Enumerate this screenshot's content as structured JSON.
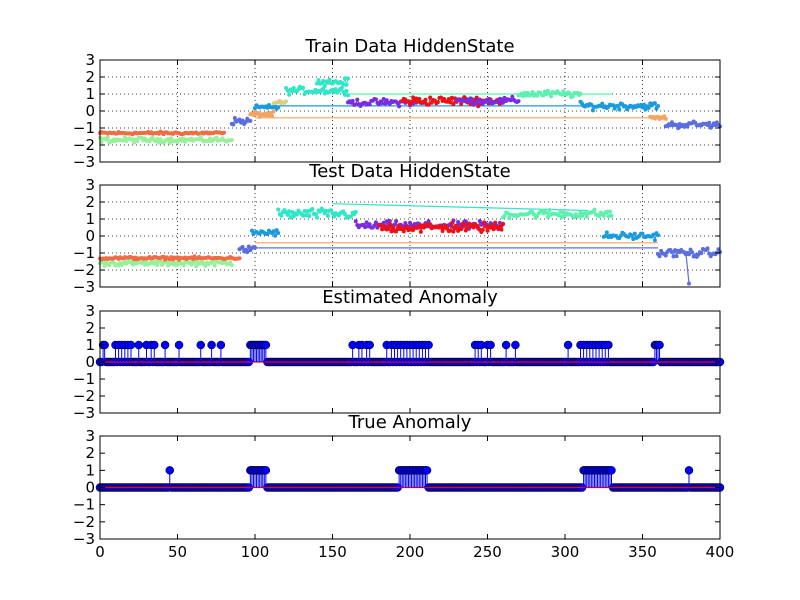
{
  "figure": {
    "background": "#ffffff"
  },
  "chart_data": [
    {
      "type": "scatter",
      "title": "Train Data HiddenState",
      "xlabel": "",
      "ylabel": "",
      "xlim": [
        0,
        400
      ],
      "ylim": [
        -3,
        3
      ],
      "yticks": [
        -3,
        -2,
        -1,
        0,
        1,
        2,
        3
      ],
      "grid": true,
      "show_xticklabels": false,
      "style": "colored hidden-state segments with connecting lines",
      "segments": [
        {
          "x": [
            0,
            80
          ],
          "y_mean": -1.3,
          "noise": 0.08,
          "color": "#f26b43"
        },
        {
          "x": [
            0,
            85
          ],
          "y_mean": -1.7,
          "noise": 0.15,
          "color": "#98f09a"
        },
        {
          "x": [
            85,
            97
          ],
          "y_mean": -0.6,
          "noise": 0.2,
          "color": "#5b6ee0"
        },
        {
          "x": [
            97,
            112
          ],
          "y_mean": -0.2,
          "noise": 0.15,
          "color": "#f4a460"
        },
        {
          "x": [
            100,
            115
          ],
          "y_mean": 0.2,
          "noise": 0.15,
          "color": "#1a9be0"
        },
        {
          "x": [
            112,
            120
          ],
          "y_mean": 0.5,
          "noise": 0.1,
          "color": "#d8d080"
        },
        {
          "x": [
            120,
            160
          ],
          "y_mean": 1.2,
          "noise": 0.2,
          "color": "#2ee6c8"
        },
        {
          "x": [
            140,
            160
          ],
          "y_mean": 1.7,
          "noise": 0.2,
          "color": "#2ee6c8"
        },
        {
          "x": [
            160,
            210
          ],
          "y_mean": 0.5,
          "noise": 0.2,
          "color": "#7b2be0"
        },
        {
          "x": [
            195,
            260
          ],
          "y_mean": 0.6,
          "noise": 0.25,
          "color": "#ee1111"
        },
        {
          "x": [
            230,
            270
          ],
          "y_mean": 0.6,
          "noise": 0.2,
          "color": "#7b2be0"
        },
        {
          "x": [
            270,
            310
          ],
          "y_mean": 1.0,
          "noise": 0.2,
          "color": "#5ef0b0"
        },
        {
          "x": [
            310,
            360
          ],
          "y_mean": 0.3,
          "noise": 0.2,
          "color": "#1a9be0"
        },
        {
          "x": [
            355,
            365
          ],
          "y_mean": -0.4,
          "noise": 0.1,
          "color": "#f4a460"
        },
        {
          "x": [
            365,
            400
          ],
          "y_mean": -0.8,
          "noise": 0.2,
          "color": "#5b6ee0"
        }
      ],
      "lines": [
        {
          "x": [
            100,
            360
          ],
          "y": [
            -0.4,
            -0.4
          ],
          "color": "#f4a460"
        },
        {
          "x": [
            110,
            330
          ],
          "y": [
            0.3,
            0.3
          ],
          "color": "#1a9be0"
        },
        {
          "x": [
            160,
            330
          ],
          "y": [
            1.0,
            1.0
          ],
          "color": "#5ef0b0"
        }
      ]
    },
    {
      "type": "scatter",
      "title": "Test Data HiddenState",
      "xlabel": "",
      "ylabel": "",
      "xlim": [
        0,
        400
      ],
      "ylim": [
        -3,
        3
      ],
      "yticks": [
        -3,
        -2,
        -1,
        0,
        1,
        2,
        3
      ],
      "grid": true,
      "show_xticklabels": false,
      "style": "colored hidden-state segments with connecting lines",
      "segments": [
        {
          "x": [
            0,
            85
          ],
          "y_mean": -1.6,
          "noise": 0.15,
          "color": "#98f09a"
        },
        {
          "x": [
            0,
            90
          ],
          "y_mean": -1.3,
          "noise": 0.08,
          "color": "#f26b43"
        },
        {
          "x": [
            90,
            100
          ],
          "y_mean": -0.8,
          "noise": 0.2,
          "color": "#5b6ee0"
        },
        {
          "x": [
            98,
            115
          ],
          "y_mean": 0.2,
          "noise": 0.2,
          "color": "#1a9be0"
        },
        {
          "x": [
            115,
            165
          ],
          "y_mean": 1.3,
          "noise": 0.3,
          "color": "#2ee6c8"
        },
        {
          "x": [
            165,
            260
          ],
          "y_mean": 0.6,
          "noise": 0.25,
          "color": "#7b2be0"
        },
        {
          "x": [
            180,
            260
          ],
          "y_mean": 0.5,
          "noise": 0.3,
          "color": "#ee1111"
        },
        {
          "x": [
            260,
            330
          ],
          "y_mean": 1.3,
          "noise": 0.25,
          "color": "#5ef0b0"
        },
        {
          "x": [
            325,
            360
          ],
          "y_mean": 0.0,
          "noise": 0.2,
          "color": "#1a9be0"
        },
        {
          "x": [
            360,
            400
          ],
          "y_mean": -1.0,
          "noise": 0.25,
          "color": "#5b6ee0"
        }
      ],
      "lines": [
        {
          "x": [
            100,
            360
          ],
          "y": [
            -0.7,
            -0.7
          ],
          "color": "#5b6ee0"
        },
        {
          "x": [
            100,
            360
          ],
          "y": [
            -0.4,
            -0.4
          ],
          "color": "#f4a460"
        },
        {
          "x": [
            150,
            315
          ],
          "y": [
            1.9,
            1.5
          ],
          "color": "#2ee6c8"
        }
      ],
      "outliers": [
        {
          "x": 380,
          "y": -2.8
        }
      ]
    },
    {
      "type": "stem",
      "title": "Estimated Anomaly",
      "xlabel": "",
      "ylabel": "",
      "xlim": [
        0,
        400
      ],
      "ylim": [
        -3,
        3
      ],
      "yticks": [
        -3,
        -2,
        -1,
        0,
        1,
        2,
        3
      ],
      "grid": false,
      "show_xticklabels": false,
      "baseline": 0,
      "anomalies": [
        2,
        3,
        10,
        12,
        14,
        16,
        18,
        20,
        25,
        30,
        33,
        35,
        42,
        51,
        65,
        72,
        78,
        97,
        98,
        99,
        100,
        101,
        102,
        103,
        104,
        105,
        106,
        107,
        163,
        167,
        169,
        172,
        174,
        185,
        188,
        190,
        192,
        194,
        196,
        198,
        200,
        202,
        204,
        206,
        208,
        210,
        212,
        242,
        244,
        246,
        250,
        252,
        262,
        268,
        302,
        310,
        312,
        314,
        316,
        318,
        320,
        322,
        324,
        326,
        328,
        358,
        359,
        360,
        361
      ],
      "colors": {
        "marker": "#0000ff",
        "baseline": "#ff0000"
      }
    },
    {
      "type": "stem",
      "title": "True Anomaly",
      "xlabel": "",
      "ylabel": "",
      "xlim": [
        0,
        400
      ],
      "ylim": [
        -3,
        3
      ],
      "xticks": [
        0,
        50,
        100,
        150,
        200,
        250,
        300,
        350,
        400
      ],
      "yticks": [
        -3,
        -2,
        -1,
        0,
        1,
        2,
        3
      ],
      "grid": false,
      "show_xticklabels": true,
      "baseline": 0,
      "anomalies": [
        45,
        97,
        98,
        99,
        100,
        101,
        102,
        103,
        104,
        105,
        106,
        107,
        193,
        194,
        195,
        196,
        197,
        198,
        199,
        200,
        201,
        202,
        203,
        204,
        205,
        206,
        207,
        208,
        209,
        210,
        211,
        312,
        313,
        314,
        315,
        316,
        317,
        318,
        319,
        320,
        321,
        322,
        323,
        324,
        325,
        326,
        327,
        328,
        329,
        330,
        380
      ],
      "colors": {
        "marker": "#0000ff",
        "baseline": "#ff0000"
      }
    }
  ]
}
